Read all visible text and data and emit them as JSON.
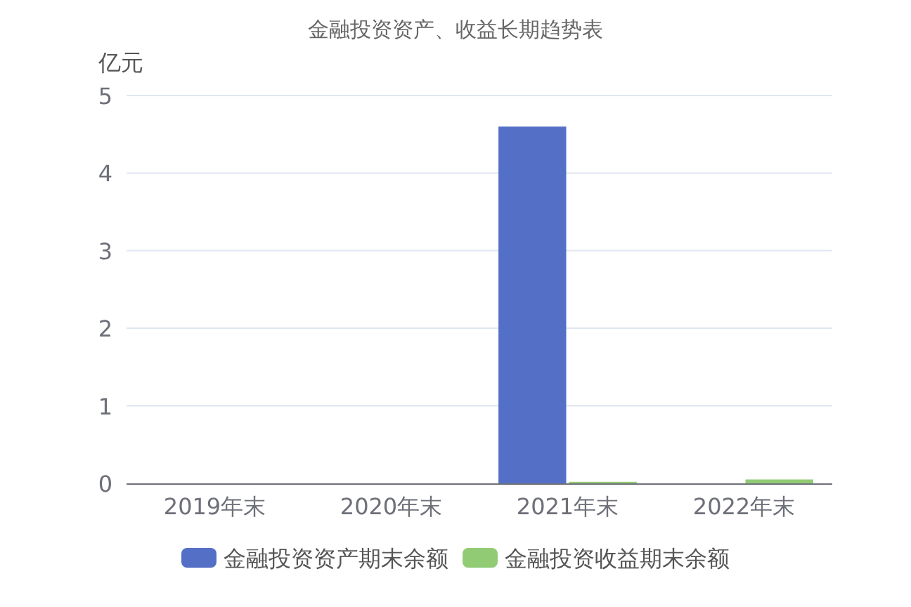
{
  "chart_data": {
    "type": "bar",
    "title": "金融投资资产、收益长期趋势表",
    "ylabel": "亿元",
    "categories": [
      "2019年末",
      "2020年末",
      "2021年末",
      "2022年末"
    ],
    "series": [
      {
        "name": "金融投资资产期末余额",
        "color": "#5470c6",
        "values": [
          0,
          0,
          4.6,
          0
        ]
      },
      {
        "name": "金融投资收益期末余额",
        "color": "#91cc75",
        "values": [
          0,
          0,
          0.02,
          0.05
        ]
      }
    ],
    "ylim": [
      0,
      5
    ],
    "yticks": [
      0,
      1,
      2,
      3,
      4,
      5
    ],
    "grid": "y",
    "legend": "bottom"
  }
}
